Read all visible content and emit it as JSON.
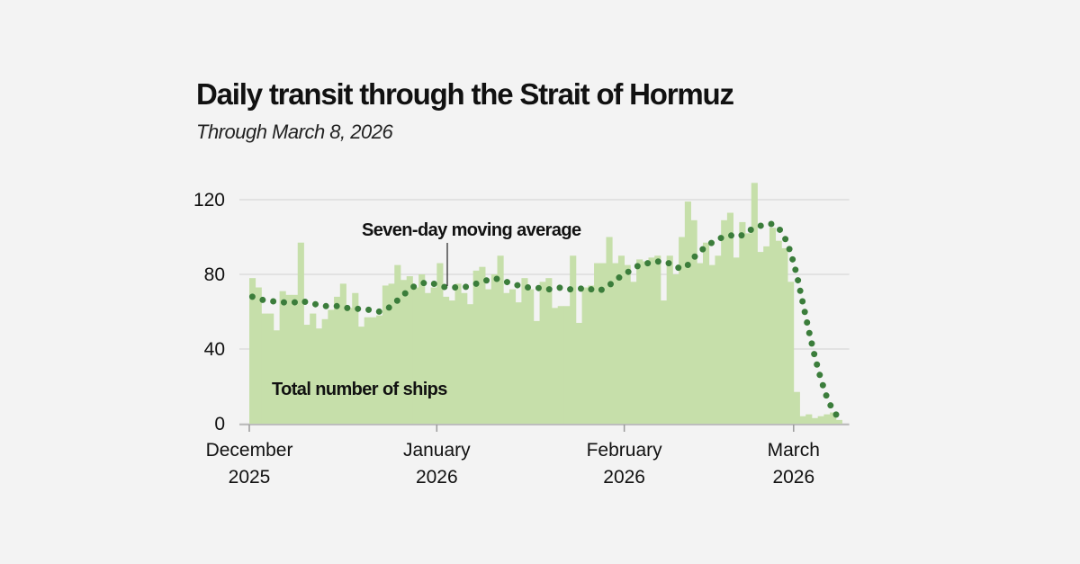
{
  "chart_data": {
    "type": "bar",
    "title": "Daily transit through the Strait of Hormuz",
    "subtitle": "Through March 8, 2026",
    "xlabel": "",
    "ylabel": "",
    "ylim": [
      0,
      120
    ],
    "yticks": [
      "0",
      "40",
      "80",
      "120"
    ],
    "ytick_values": [
      0,
      40,
      80,
      120
    ],
    "grid": true,
    "x_start": "2025-12-01",
    "x_end": "2026-03-08",
    "xticks": [
      {
        "month": "December",
        "year": "2025",
        "date": "2025-12-01"
      },
      {
        "month": "January",
        "year": "2026",
        "date": "2026-01-01"
      },
      {
        "month": "February",
        "year": "2026",
        "date": "2026-02-01"
      },
      {
        "month": "March",
        "year": "2026",
        "date": "2026-03-01"
      }
    ],
    "annotations": {
      "bars": "Total number of ships",
      "line": "Seven-day moving average"
    },
    "colors": {
      "bars": "#c6dfaa",
      "line": "#3b7d3b",
      "background": "#f3f3f3"
    },
    "series": [
      {
        "name": "Total number of ships",
        "type": "bar",
        "values": [
          78,
          73,
          59,
          59,
          50,
          71,
          69,
          69,
          97,
          53,
          59,
          51,
          56,
          61,
          68,
          75,
          62,
          70,
          52,
          57,
          57,
          58,
          74,
          75,
          85,
          77,
          79,
          73,
          80,
          70,
          73,
          86,
          68,
          66,
          75,
          70,
          64,
          82,
          84,
          72,
          80,
          90,
          70,
          72,
          65,
          78,
          72,
          55,
          76,
          78,
          62,
          63,
          63,
          90,
          54,
          73,
          74,
          86,
          86,
          100,
          86,
          90,
          85,
          76,
          88,
          87,
          89,
          90,
          66,
          90,
          80,
          100,
          119,
          109,
          86,
          97,
          85,
          90,
          109,
          113,
          89,
          108,
          102,
          129,
          92,
          95,
          105,
          98,
          94,
          76,
          17,
          4,
          5,
          3,
          4,
          5,
          6,
          2
        ]
      },
      {
        "name": "Seven-day moving average",
        "type": "line",
        "values": [
          68,
          67,
          66,
          66,
          65,
          65,
          65,
          65,
          66,
          65,
          64,
          64,
          63,
          63,
          63,
          62,
          62,
          62,
          61,
          61,
          61,
          60,
          61,
          63,
          66,
          69,
          72,
          74,
          75,
          76,
          75,
          74,
          73,
          73,
          73,
          73,
          74,
          75,
          76,
          77,
          78,
          77,
          76,
          75,
          74,
          73,
          73,
          73,
          72,
          72,
          72,
          73,
          72,
          72,
          72,
          73,
          72,
          71,
          72,
          74,
          77,
          79,
          81,
          83,
          85,
          86,
          86,
          87,
          86,
          86,
          84,
          83,
          85,
          89,
          92,
          95,
          97,
          99,
          100,
          101,
          100,
          101,
          103,
          105,
          106,
          107,
          107,
          105,
          100,
          92,
          80,
          65,
          50,
          36,
          24,
          14,
          7,
          3
        ]
      }
    ]
  }
}
